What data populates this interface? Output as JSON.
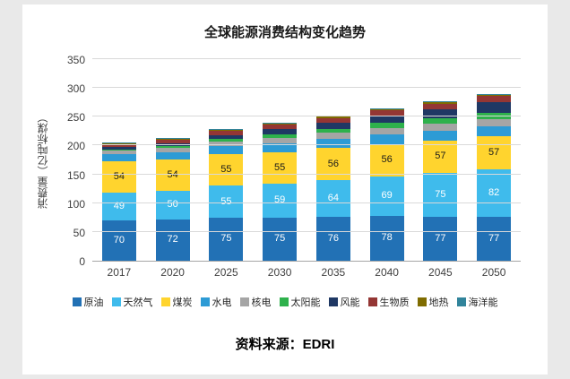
{
  "page": {
    "source": "资料来源：EDRI"
  },
  "chart_data": {
    "type": "bar",
    "stacked": true,
    "title": "全球能源消费结构变化趋势",
    "xlabel": "",
    "ylabel": "消费量（亿吨标煤）",
    "ylim": [
      0,
      350
    ],
    "yticks": [
      0,
      50,
      100,
      150,
      200,
      250,
      300,
      350
    ],
    "grid": true,
    "legend_position": "bottom",
    "categories": [
      "2017",
      "2020",
      "2025",
      "2030",
      "2035",
      "2040",
      "2045",
      "2050"
    ],
    "series": [
      {
        "name": "原油",
        "color": "#2271B5",
        "label_color": "#FFFFFF",
        "show_labels": true,
        "values": [
          70,
          72,
          75,
          75,
          76,
          78,
          77,
          77
        ]
      },
      {
        "name": "天然气",
        "color": "#3FBBEC",
        "label_color": "#FFFFFF",
        "show_labels": true,
        "values": [
          49,
          50,
          55,
          59,
          64,
          69,
          75,
          82
        ]
      },
      {
        "name": "煤炭",
        "color": "#FFD42E",
        "label_color": "#1A1A1A",
        "show_labels": true,
        "values": [
          54,
          54,
          55,
          55,
          56,
          56,
          57,
          57
        ]
      },
      {
        "name": "水电",
        "color": "#2D9BD5",
        "show_labels": false,
        "values": [
          12,
          13,
          14,
          15,
          16,
          17,
          17,
          18
        ]
      },
      {
        "name": "核电",
        "color": "#A5A5A5",
        "show_labels": false,
        "values": [
          6,
          7,
          8,
          9,
          10,
          11,
          12,
          12
        ]
      },
      {
        "name": "太阳能",
        "color": "#2EB14C",
        "show_labels": false,
        "values": [
          2,
          3,
          4,
          6,
          7,
          8,
          9,
          10
        ]
      },
      {
        "name": "风能",
        "color": "#1F3864",
        "show_labels": false,
        "values": [
          4,
          5,
          7,
          9,
          11,
          13,
          16,
          19
        ]
      },
      {
        "name": "生物质",
        "color": "#943634",
        "show_labels": false,
        "values": [
          6,
          6,
          7,
          8,
          8,
          9,
          10,
          11
        ]
      },
      {
        "name": "地热",
        "color": "#7F6C00",
        "show_labels": false,
        "values": [
          1,
          2,
          2,
          2,
          2,
          2,
          2,
          2
        ]
      },
      {
        "name": "海洋能",
        "color": "#31849B",
        "show_labels": false,
        "values": [
          1,
          1,
          1,
          2,
          2,
          2,
          2,
          2
        ]
      }
    ]
  }
}
